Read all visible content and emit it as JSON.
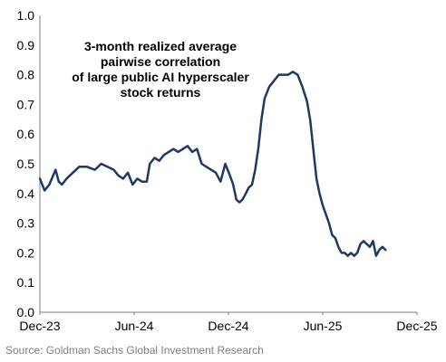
{
  "chart_data": {
    "type": "line",
    "title_lines": [
      "3-month realized average",
      "pairwise correlation",
      "of large public AI hyperscaler",
      "stock returns"
    ],
    "xlabel": "",
    "ylabel": "",
    "x_ticks": [
      "Dec-23",
      "Jun-24",
      "Dec-24",
      "Jun-25",
      "Dec-25"
    ],
    "y_ticks": [
      "1.0",
      "0.9",
      "0.8",
      "0.7",
      "0.6",
      "0.5",
      "0.4",
      "0.3",
      "0.2",
      "0.1",
      "0.0"
    ],
    "ylim": [
      0,
      1
    ],
    "xlim_months": [
      0,
      24
    ],
    "grid": false,
    "line_color": "#1f3864",
    "series": [
      {
        "x": [
          0.0,
          0.3,
          0.6,
          1.0,
          1.2,
          1.4,
          1.7,
          2.1,
          2.5,
          3.0,
          3.5,
          3.9,
          4.3,
          4.7,
          5.0,
          5.3,
          5.6,
          5.9,
          6.2,
          6.5,
          6.8,
          7.0,
          7.3,
          7.6,
          7.9,
          8.2,
          8.5,
          8.8,
          9.1,
          9.4,
          9.7,
          10.0,
          10.3,
          10.6,
          10.9,
          11.2,
          11.5,
          11.8,
          12.1,
          12.3,
          12.5,
          12.7,
          12.9,
          13.1,
          13.3,
          13.5,
          13.7,
          13.9,
          14.1,
          14.3,
          14.6,
          14.9,
          15.2,
          15.5,
          15.8,
          16.1,
          16.4,
          16.7,
          17.0,
          17.2,
          17.4,
          17.6,
          17.8,
          18.0,
          18.2,
          18.4,
          18.6,
          18.8,
          19.0,
          19.2,
          19.4,
          19.6,
          19.8,
          20.0,
          20.2,
          20.4,
          20.6,
          20.8,
          21.0,
          21.2,
          21.4,
          21.6,
          21.8,
          22.0
        ],
        "values": [
          0.45,
          0.41,
          0.43,
          0.48,
          0.44,
          0.43,
          0.45,
          0.47,
          0.49,
          0.49,
          0.48,
          0.5,
          0.49,
          0.48,
          0.46,
          0.45,
          0.47,
          0.43,
          0.45,
          0.44,
          0.44,
          0.5,
          0.52,
          0.51,
          0.53,
          0.54,
          0.55,
          0.54,
          0.55,
          0.56,
          0.54,
          0.55,
          0.5,
          0.49,
          0.48,
          0.47,
          0.44,
          0.5,
          0.46,
          0.43,
          0.38,
          0.37,
          0.38,
          0.4,
          0.42,
          0.43,
          0.48,
          0.55,
          0.65,
          0.72,
          0.76,
          0.78,
          0.8,
          0.8,
          0.8,
          0.81,
          0.8,
          0.76,
          0.71,
          0.65,
          0.55,
          0.45,
          0.4,
          0.36,
          0.33,
          0.3,
          0.26,
          0.25,
          0.22,
          0.2,
          0.2,
          0.19,
          0.2,
          0.19,
          0.2,
          0.23,
          0.24,
          0.23,
          0.22,
          0.24,
          0.19,
          0.21,
          0.22,
          0.21
        ]
      }
    ]
  },
  "source": "Source: Goldman Sachs Global Investment Research"
}
